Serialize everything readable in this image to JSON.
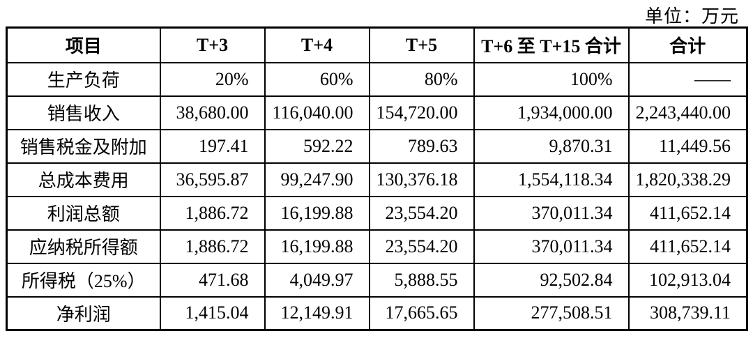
{
  "unit_label": "单位：万元",
  "table": {
    "columns": [
      "项目",
      "T+3",
      "T+4",
      "T+5",
      "T+6 至 T+15 合计",
      "合计"
    ],
    "rows": [
      {
        "label": "生产负荷",
        "values": [
          "20%",
          "60%",
          "80%",
          "100%",
          "——"
        ]
      },
      {
        "label": "销售收入",
        "values": [
          "38,680.00",
          "116,040.00",
          "154,720.00",
          "1,934,000.00",
          "2,243,440.00"
        ]
      },
      {
        "label": "销售税金及附加",
        "values": [
          "197.41",
          "592.22",
          "789.63",
          "9,870.31",
          "11,449.56"
        ]
      },
      {
        "label": "总成本费用",
        "values": [
          "36,595.87",
          "99,247.90",
          "130,376.18",
          "1,554,118.34",
          "1,820,338.29"
        ]
      },
      {
        "label": "利润总额",
        "values": [
          "1,886.72",
          "16,199.88",
          "23,554.20",
          "370,011.34",
          "411,652.14"
        ]
      },
      {
        "label": "应纳税所得额",
        "values": [
          "1,886.72",
          "16,199.88",
          "23,554.20",
          "370,011.34",
          "411,652.14"
        ]
      },
      {
        "label": "所得税（25%）",
        "values": [
          "471.68",
          "4,049.97",
          "5,888.55",
          "92,502.84",
          "102,913.04"
        ]
      },
      {
        "label": "净利润",
        "values": [
          "1,415.04",
          "12,149.91",
          "17,665.65",
          "277,508.51",
          "308,739.11"
        ]
      }
    ]
  },
  "colors": {
    "background": "#ffffff",
    "text": "#000000",
    "border": "#000000"
  }
}
